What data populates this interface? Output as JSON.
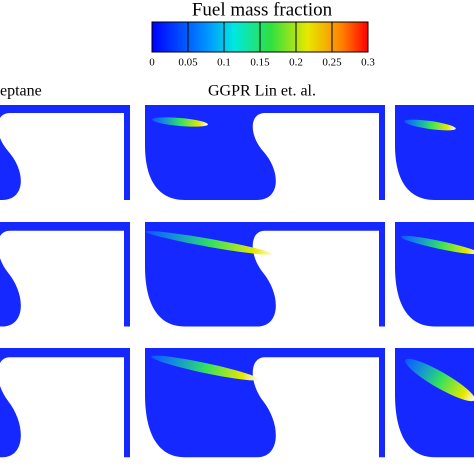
{
  "colorbar": {
    "title": "Fuel mass fraction",
    "ticks": [
      0,
      0.05,
      0.1,
      0.15,
      0.2,
      0.25,
      0.3
    ]
  },
  "panels": {
    "left_label": "eptane",
    "middle_label": "GGPR Lin et. al."
  }
}
